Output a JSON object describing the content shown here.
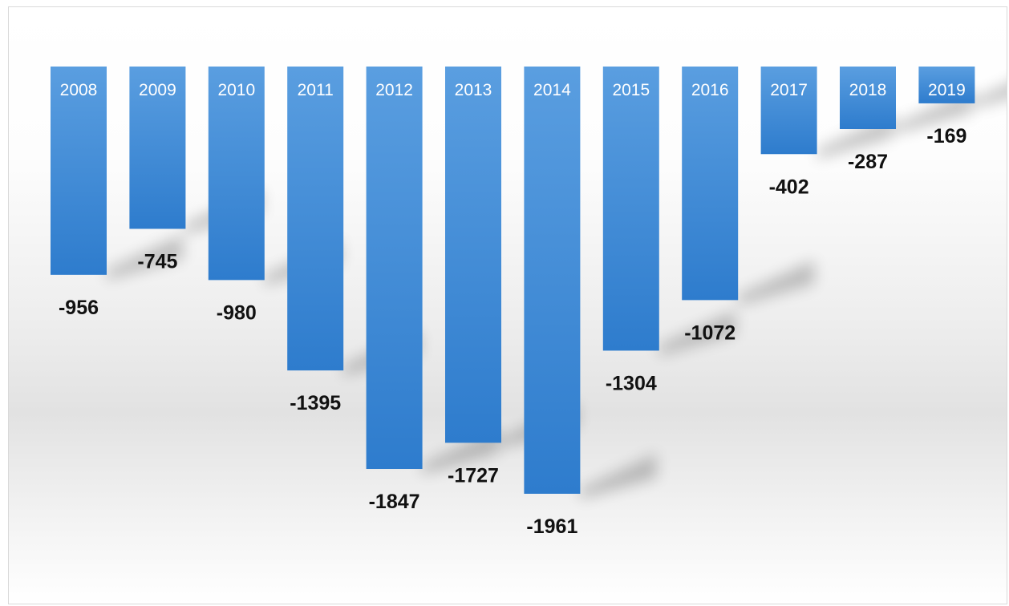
{
  "chart_data": {
    "type": "bar",
    "categories": [
      "2008",
      "2009",
      "2010",
      "2011",
      "2012",
      "2013",
      "2014",
      "2015",
      "2016",
      "2017",
      "2018",
      "2019"
    ],
    "values": [
      -956,
      -745,
      -980,
      -1395,
      -1847,
      -1727,
      -1961,
      -1304,
      -1072,
      -402,
      -287,
      -169
    ],
    "title": "",
    "xlabel": "",
    "ylabel": "",
    "ylim": [
      -1961,
      0
    ],
    "grid": false,
    "legend": "none",
    "colors": {
      "bar_top": "#5a9ee0",
      "bar_bottom": "#2e7ccd",
      "category_label": "#ffffff",
      "value_label": "#111111",
      "frame_border": "#d9d9d9"
    }
  }
}
